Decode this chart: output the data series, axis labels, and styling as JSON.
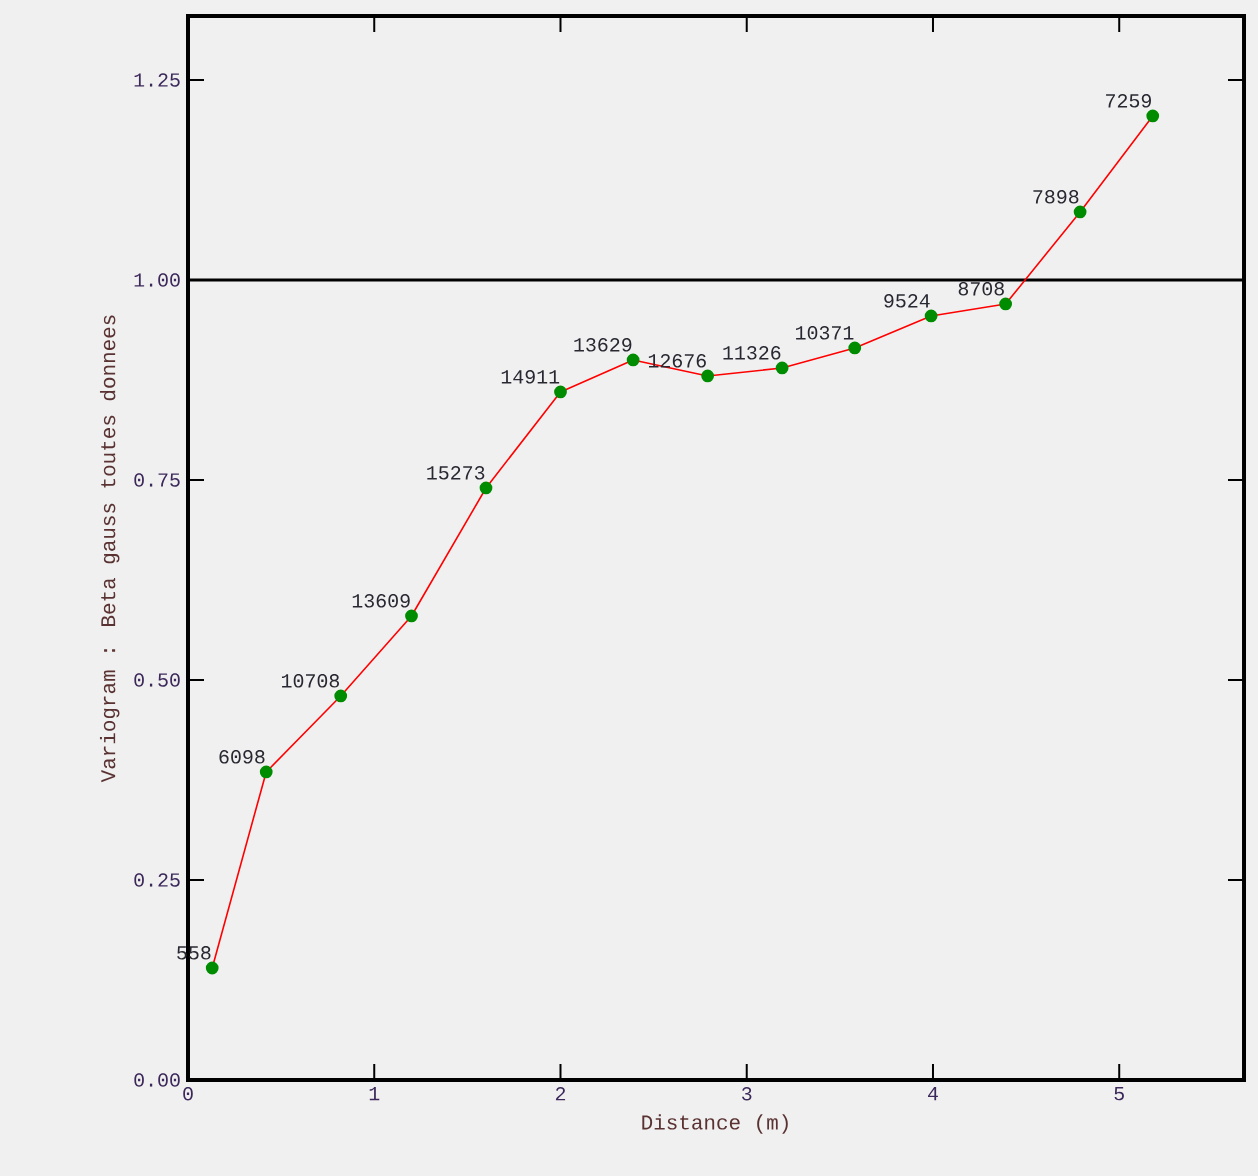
{
  "chart_data": {
    "type": "line",
    "xlabel": "Distance (m)",
    "ylabel": "Variogram : Beta gauss toutes donnees",
    "x": [
      0.13,
      0.42,
      0.82,
      1.2,
      1.6,
      2.0,
      2.39,
      2.79,
      3.19,
      3.58,
      3.99,
      4.39,
      4.79,
      5.18
    ],
    "series": [
      {
        "color": "#ff0000",
        "values": [
          0.14,
          0.385,
          0.48,
          0.58,
          0.74,
          0.86,
          0.9,
          0.88,
          0.89,
          0.915,
          0.955,
          0.97,
          1.085,
          1.205
        ]
      }
    ],
    "marker": "circle",
    "line_style": "solid",
    "xlim": [
      0,
      5.67
    ],
    "ylim": [
      0,
      1.33
    ],
    "xticks": [
      0,
      1,
      2,
      3,
      4,
      5
    ],
    "yticks": [
      {
        "value": 0,
        "label": "0.00"
      },
      {
        "value": 0.25,
        "label": "0.25"
      },
      {
        "value": 0.5,
        "label": "0.50"
      },
      {
        "value": 0.75,
        "label": "0.75"
      },
      {
        "value": 1,
        "label": "1.00"
      },
      {
        "value": 1.25,
        "label": "1.25"
      }
    ],
    "ref_lines": [
      {
        "axis": "y",
        "value": 1,
        "color": "#000000"
      }
    ],
    "annotations": [
      {
        "text": "558",
        "x": 0.13,
        "y": 0.14
      },
      {
        "text": "6098",
        "x": 0.42,
        "y": 0.385
      },
      {
        "text": "10708",
        "x": 0.82,
        "y": 0.48
      },
      {
        "text": "13609",
        "x": 1.2,
        "y": 0.58
      },
      {
        "text": "15273",
        "x": 1.6,
        "y": 0.74
      },
      {
        "text": "14911",
        "x": 2.0,
        "y": 0.86
      },
      {
        "text": "13629",
        "x": 2.39,
        "y": 0.9
      },
      {
        "text": "12676",
        "x": 2.79,
        "y": 0.88
      },
      {
        "text": "11326",
        "x": 3.19,
        "y": 0.89
      },
      {
        "text": "10371",
        "x": 3.58,
        "y": 0.915
      },
      {
        "text": "9524",
        "x": 3.99,
        "y": 0.955
      },
      {
        "text": "8708",
        "x": 4.39,
        "y": 0.97
      },
      {
        "text": "7898",
        "x": 4.79,
        "y": 1.085
      },
      {
        "text": "7259",
        "x": 5.18,
        "y": 1.205
      }
    ],
    "grid": false
  }
}
